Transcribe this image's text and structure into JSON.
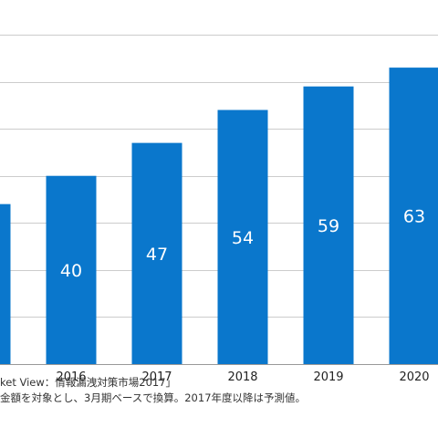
{
  "chart_data": {
    "type": "bar",
    "categories": [
      "",
      "2016",
      "2017",
      "2018",
      "2019",
      "2020"
    ],
    "values": [
      34,
      40,
      47,
      54,
      59,
      63
    ],
    "data_labels": [
      "",
      "40",
      "47",
      "54",
      "59",
      "63"
    ],
    "ylim": [
      0,
      70
    ],
    "grid": true,
    "bar_color": "#0a77cc",
    "grid_color": "#cccccc",
    "label_color": "#ffffff"
  },
  "footnotes": {
    "source": "ket View：情報漏洩対策市場2017」",
    "note": "金額を対象とし、3月期ベースで換算。2017年度以降は予測値。"
  }
}
